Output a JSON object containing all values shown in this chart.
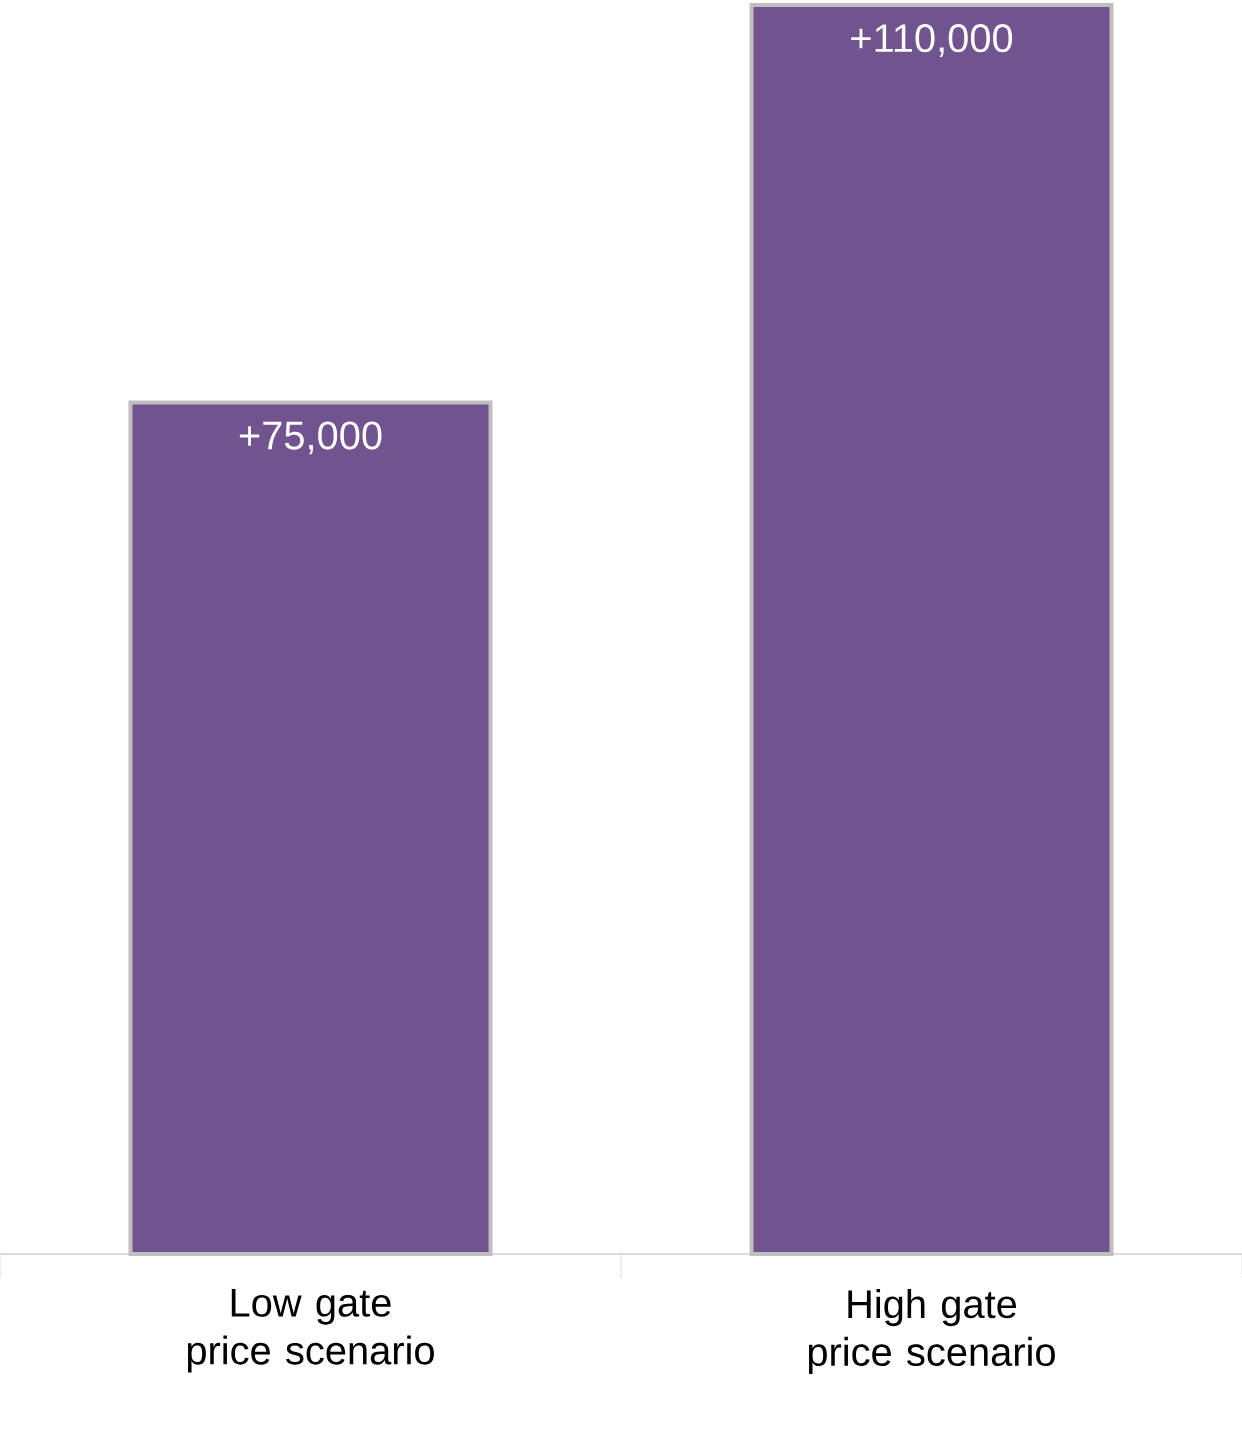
{
  "chart_data": {
    "type": "bar",
    "categories": [
      "Low gate price scenario",
      "High gate price scenario"
    ],
    "values": [
      75000,
      110000
    ],
    "value_labels": [
      "+75,000",
      "+110,000"
    ],
    "color": "#71538f"
  }
}
